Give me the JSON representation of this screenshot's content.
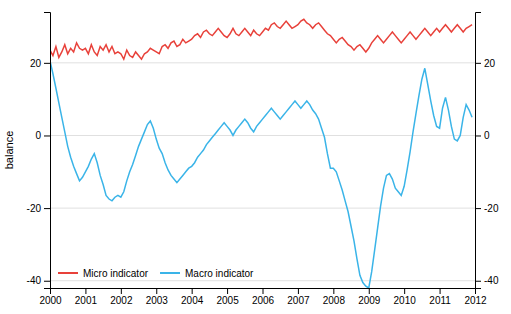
{
  "chart_data": {
    "type": "line",
    "ylabel": "balance",
    "xlim": [
      2000.0,
      2012.0
    ],
    "ylim": [
      -42,
      34
    ],
    "xticks": [
      2000,
      2001,
      2002,
      2003,
      2004,
      2005,
      2006,
      2007,
      2008,
      2009,
      2010,
      2011,
      2012
    ],
    "yticks": [
      -40,
      -20,
      0,
      20
    ],
    "y2lim": [
      -42,
      34
    ],
    "y2ticks": [
      -40,
      -20,
      0,
      20
    ],
    "grid": true,
    "legend": "lower left",
    "x": [
      2000.0,
      2000.083,
      2000.167,
      2000.25,
      2000.333,
      2000.417,
      2000.5,
      2000.583,
      2000.667,
      2000.75,
      2000.833,
      2000.917,
      2001.0,
      2001.083,
      2001.167,
      2001.25,
      2001.333,
      2001.417,
      2001.5,
      2001.583,
      2001.667,
      2001.75,
      2001.833,
      2001.917,
      2002.0,
      2002.083,
      2002.167,
      2002.25,
      2002.333,
      2002.417,
      2002.5,
      2002.583,
      2002.667,
      2002.75,
      2002.833,
      2002.917,
      2003.0,
      2003.083,
      2003.167,
      2003.25,
      2003.333,
      2003.417,
      2003.5,
      2003.583,
      2003.667,
      2003.75,
      2003.833,
      2003.917,
      2004.0,
      2004.083,
      2004.167,
      2004.25,
      2004.333,
      2004.417,
      2004.5,
      2004.583,
      2004.667,
      2004.75,
      2004.833,
      2004.917,
      2005.0,
      2005.083,
      2005.167,
      2005.25,
      2005.333,
      2005.417,
      2005.5,
      2005.583,
      2005.667,
      2005.75,
      2005.833,
      2005.917,
      2006.0,
      2006.083,
      2006.167,
      2006.25,
      2006.333,
      2006.417,
      2006.5,
      2006.583,
      2006.667,
      2006.75,
      2006.833,
      2006.917,
      2007.0,
      2007.083,
      2007.167,
      2007.25,
      2007.333,
      2007.417,
      2007.5,
      2007.583,
      2007.667,
      2007.75,
      2007.833,
      2007.917,
      2008.0,
      2008.083,
      2008.167,
      2008.25,
      2008.333,
      2008.417,
      2008.5,
      2008.583,
      2008.667,
      2008.75,
      2008.833,
      2008.917,
      2009.0,
      2009.083,
      2009.167,
      2009.25,
      2009.333,
      2009.417,
      2009.5,
      2009.583,
      2009.667,
      2009.75,
      2009.833,
      2009.917,
      2010.0,
      2010.083,
      2010.167,
      2010.25,
      2010.333,
      2010.417,
      2010.5,
      2010.583,
      2010.667,
      2010.75,
      2010.833,
      2010.917,
      2011.0,
      2011.083,
      2011.167,
      2011.25,
      2011.333,
      2011.417,
      2011.5,
      2011.583,
      2011.667,
      2011.75,
      2011.833,
      2011.917
    ],
    "series": [
      {
        "name": "Micro indicator",
        "color": "#e8413a",
        "values": [
          23.5,
          22.0,
          24.5,
          21.5,
          23.0,
          25.0,
          22.5,
          24.0,
          23.0,
          25.5,
          24.0,
          23.5,
          24.0,
          22.5,
          25.0,
          23.0,
          22.0,
          24.5,
          23.5,
          25.0,
          23.0,
          24.5,
          22.5,
          23.0,
          22.5,
          21.0,
          23.5,
          22.0,
          21.5,
          23.0,
          22.0,
          21.0,
          22.5,
          23.0,
          24.0,
          23.5,
          23.0,
          22.5,
          24.5,
          25.0,
          24.0,
          25.5,
          26.0,
          24.5,
          25.0,
          26.5,
          25.5,
          26.0,
          26.5,
          27.5,
          28.0,
          27.0,
          28.5,
          29.0,
          28.0,
          27.5,
          28.5,
          29.5,
          28.5,
          27.5,
          27.0,
          28.0,
          29.5,
          28.0,
          27.5,
          28.5,
          29.5,
          28.5,
          27.5,
          29.0,
          28.0,
          27.5,
          28.5,
          29.5,
          29.0,
          30.5,
          31.0,
          30.0,
          29.5,
          30.5,
          31.5,
          30.5,
          29.5,
          30.0,
          30.5,
          31.5,
          32.0,
          31.0,
          30.5,
          29.5,
          30.5,
          31.0,
          30.0,
          29.0,
          28.0,
          27.5,
          26.5,
          25.5,
          26.5,
          27.0,
          26.0,
          25.0,
          24.5,
          23.5,
          24.5,
          25.0,
          24.0,
          23.0,
          24.0,
          25.5,
          26.5,
          27.5,
          26.5,
          25.5,
          26.5,
          27.5,
          28.5,
          27.5,
          26.5,
          25.5,
          26.5,
          27.5,
          28.5,
          27.5,
          26.5,
          27.5,
          28.5,
          29.5,
          28.5,
          27.5,
          28.5,
          29.5,
          28.5,
          29.5,
          30.5,
          29.5,
          28.5,
          29.5,
          30.5,
          29.5,
          28.5,
          29.5,
          30.0,
          30.5
        ]
      },
      {
        "name": "Macro indicator",
        "color": "#3ab4e8",
        "values": [
          20.5,
          17.0,
          13.0,
          9.0,
          5.0,
          1.0,
          -3.0,
          -6.0,
          -8.5,
          -10.5,
          -12.5,
          -11.5,
          -10.0,
          -8.5,
          -6.5,
          -5.0,
          -7.5,
          -11.0,
          -13.5,
          -16.5,
          -17.5,
          -18.0,
          -17.0,
          -16.5,
          -17.0,
          -15.5,
          -12.5,
          -10.0,
          -8.0,
          -5.5,
          -3.0,
          -1.0,
          1.0,
          3.0,
          4.0,
          2.0,
          -1.0,
          -3.5,
          -5.0,
          -7.5,
          -9.5,
          -11.0,
          -12.0,
          -13.0,
          -12.0,
          -11.0,
          -10.0,
          -9.0,
          -8.5,
          -7.5,
          -6.0,
          -5.0,
          -4.0,
          -2.5,
          -1.5,
          -0.5,
          0.5,
          1.5,
          2.5,
          3.5,
          2.5,
          1.5,
          0.0,
          1.5,
          2.5,
          3.5,
          4.5,
          3.5,
          2.0,
          1.0,
          2.5,
          3.5,
          4.5,
          5.5,
          6.5,
          7.5,
          6.5,
          5.5,
          4.5,
          5.5,
          6.5,
          7.5,
          8.5,
          9.5,
          8.5,
          7.5,
          8.5,
          9.5,
          8.5,
          7.0,
          6.0,
          4.5,
          2.0,
          -0.5,
          -5.0,
          -9.0,
          -9.0,
          -10.0,
          -12.5,
          -15.0,
          -18.0,
          -21.0,
          -25.0,
          -29.0,
          -34.0,
          -38.5,
          -40.5,
          -41.5,
          -42.0,
          -37.5,
          -31.5,
          -25.5,
          -19.5,
          -14.5,
          -11.0,
          -10.5,
          -12.0,
          -14.5,
          -15.5,
          -16.5,
          -14.0,
          -9.5,
          -4.5,
          1.0,
          6.0,
          11.0,
          15.5,
          18.5,
          14.0,
          9.5,
          5.5,
          2.5,
          2.0,
          7.5,
          10.5,
          7.0,
          2.5,
          -1.0,
          -1.5,
          0.0,
          5.0,
          8.5,
          7.0,
          5.0
        ]
      }
    ]
  }
}
